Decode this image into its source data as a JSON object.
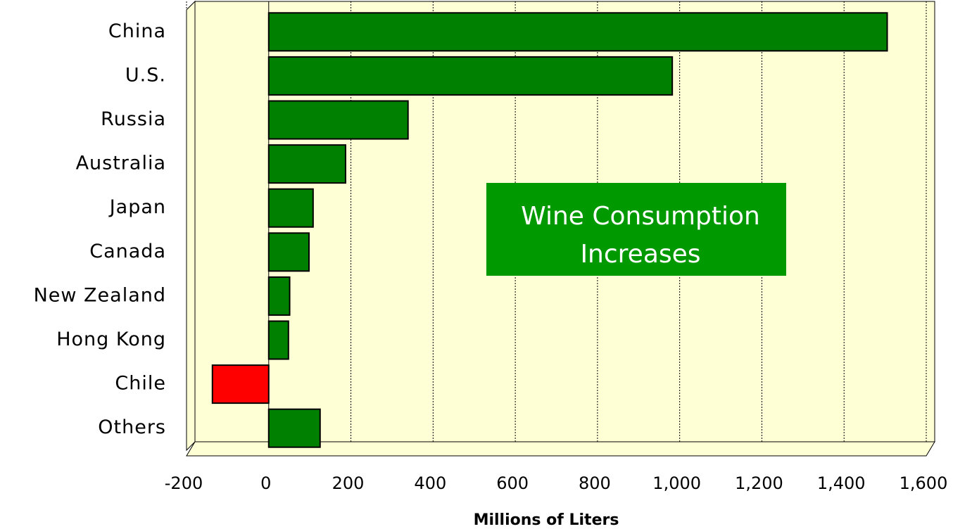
{
  "chart_data": {
    "type": "bar",
    "orientation": "horizontal",
    "categories": [
      "China",
      "U.S.",
      "Russia",
      "Australia",
      "Japan",
      "Canada",
      "New Zealand",
      "Hong Kong",
      "Chile",
      "Others"
    ],
    "values": [
      1505,
      982,
      339,
      187,
      108,
      98,
      51,
      48,
      -137,
      125
    ],
    "colors": [
      "#008000",
      "#008000",
      "#008000",
      "#008000",
      "#008000",
      "#008000",
      "#008000",
      "#008000",
      "#ff0000",
      "#008000"
    ],
    "xlabel": "Millions of Liters",
    "xlim": [
      -200,
      1600
    ],
    "xticks": [
      -200,
      0,
      200,
      400,
      600,
      800,
      {
        "value": 1000,
        "label": "1,000"
      },
      {
        "value": 1200,
        "label": "1,200"
      },
      {
        "value": 1400,
        "label": "1,400"
      },
      {
        "value": 1600,
        "label": "1,600"
      }
    ],
    "grid": true,
    "annotation": [
      "Wine Consumption",
      "Increases"
    ],
    "annotation_color": "#009900",
    "background": "#ffffd6"
  }
}
